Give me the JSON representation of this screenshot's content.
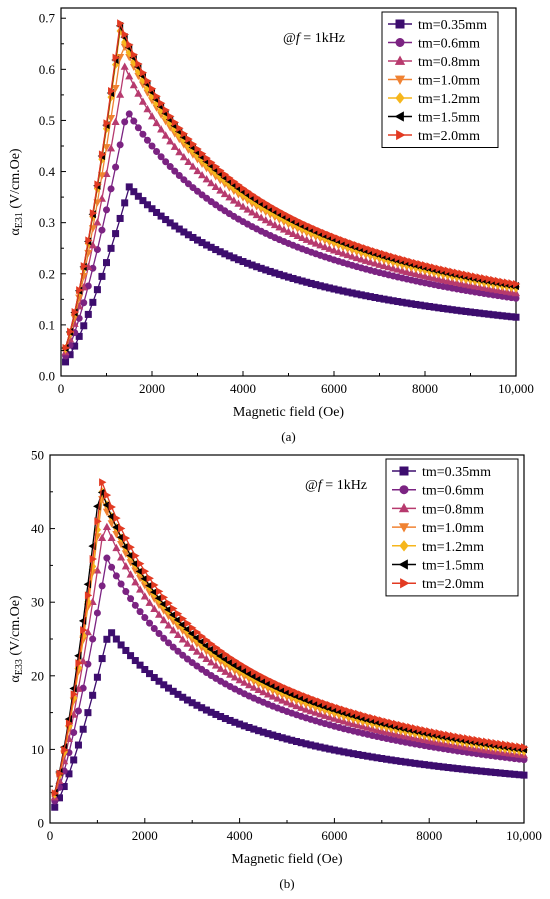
{
  "chart_data": [
    {
      "type": "line",
      "panel_label": "(a)",
      "annotation": "@f = 1kHz",
      "annotation_prefix": "@",
      "annotation_var": "f",
      "annotation_rest": " = 1kHz",
      "xlabel": "Magnetic field (Oe)",
      "ylabel_main": "α",
      "ylabel_sub": "E31",
      "ylabel_unit": " (V/cm.Oe)",
      "xlim": [
        0,
        10000
      ],
      "ylim": [
        0,
        0.72
      ],
      "xticks": [
        0,
        2000,
        4000,
        6000,
        8000,
        10000
      ],
      "xtick_labels": [
        "0",
        "2000",
        "4000",
        "6000",
        "8000",
        "10,000"
      ],
      "yticks": [
        0,
        0.1,
        0.2,
        0.3,
        0.4,
        0.5,
        0.6,
        0.7
      ],
      "ytick_labels": [
        "0.0",
        "0.1",
        "0.2",
        "0.3",
        "0.4",
        "0.5",
        "0.6",
        "0.7"
      ],
      "legend_position": "top-right",
      "grid": false,
      "series": [
        {
          "name": "tm=0.35mm",
          "color": "#3d0d6e",
          "marker": "square",
          "peak_x": 1500,
          "peak_y": 0.37,
          "end_y": 0.115
        },
        {
          "name": "tm=0.6mm",
          "color": "#7b2382",
          "marker": "circle",
          "peak_x": 1450,
          "peak_y": 0.52,
          "end_y": 0.152
        },
        {
          "name": "tm=0.8mm",
          "color": "#b73a6e",
          "marker": "triangle-up",
          "peak_x": 1400,
          "peak_y": 0.605,
          "end_y": 0.162
        },
        {
          "name": "tm=1.0mm",
          "color": "#f08232",
          "marker": "triangle-down",
          "peak_x": 1350,
          "peak_y": 0.655,
          "end_y": 0.17
        },
        {
          "name": "tm=1.2mm",
          "color": "#f6b61c",
          "marker": "diamond",
          "peak_x": 1300,
          "peak_y": 0.675,
          "end_y": 0.173
        },
        {
          "name": "tm=1.5mm",
          "color": "#000000",
          "marker": "triangle-left",
          "peak_x": 1300,
          "peak_y": 0.685,
          "end_y": 0.176
        },
        {
          "name": "tm=2.0mm",
          "color": "#e23a22",
          "marker": "triangle-right",
          "peak_x": 1300,
          "peak_y": 0.69,
          "end_y": 0.18
        }
      ]
    },
    {
      "type": "line",
      "panel_label": "(b)",
      "annotation": "@f = 1kHz",
      "annotation_prefix": "@",
      "annotation_var": "f",
      "annotation_rest": " = 1kHz",
      "xlabel": "Magnetic field (Oe)",
      "ylabel_main": "α",
      "ylabel_sub": "E33",
      "ylabel_unit": " (V/cm.Oe)",
      "xlim": [
        0,
        10000
      ],
      "ylim": [
        0,
        50
      ],
      "xticks": [
        0,
        2000,
        4000,
        6000,
        8000,
        10000
      ],
      "xtick_labels": [
        "0",
        "2000",
        "4000",
        "6000",
        "8000",
        "10,000"
      ],
      "yticks": [
        0,
        10,
        20,
        30,
        40,
        50
      ],
      "ytick_labels": [
        "0",
        "10",
        "20",
        "30",
        "40",
        "50"
      ],
      "legend_position": "top-right",
      "grid": false,
      "series": [
        {
          "name": "tm=0.35mm",
          "color": "#3d0d6e",
          "marker": "square",
          "peak_x": 1250,
          "peak_y": 26.3,
          "end_y": 6.5
        },
        {
          "name": "tm=0.6mm",
          "color": "#7b2382",
          "marker": "circle",
          "peak_x": 1200,
          "peak_y": 36.0,
          "end_y": 8.6
        },
        {
          "name": "tm=0.8mm",
          "color": "#b73a6e",
          "marker": "triangle-up",
          "peak_x": 1150,
          "peak_y": 41.0,
          "end_y": 9.2
        },
        {
          "name": "tm=1.0mm",
          "color": "#f08232",
          "marker": "triangle-down",
          "peak_x": 1100,
          "peak_y": 44.0,
          "end_y": 9.6
        },
        {
          "name": "tm=1.2mm",
          "color": "#f6b61c",
          "marker": "diamond",
          "peak_x": 1100,
          "peak_y": 45.0,
          "end_y": 9.8
        },
        {
          "name": "tm=1.5mm",
          "color": "#000000",
          "marker": "triangle-left",
          "peak_x": 1050,
          "peak_y": 45.8,
          "end_y": 10.0
        },
        {
          "name": "tm=2.0mm",
          "color": "#e23a22",
          "marker": "triangle-right",
          "peak_x": 1100,
          "peak_y": 46.3,
          "end_y": 10.3
        }
      ]
    }
  ]
}
